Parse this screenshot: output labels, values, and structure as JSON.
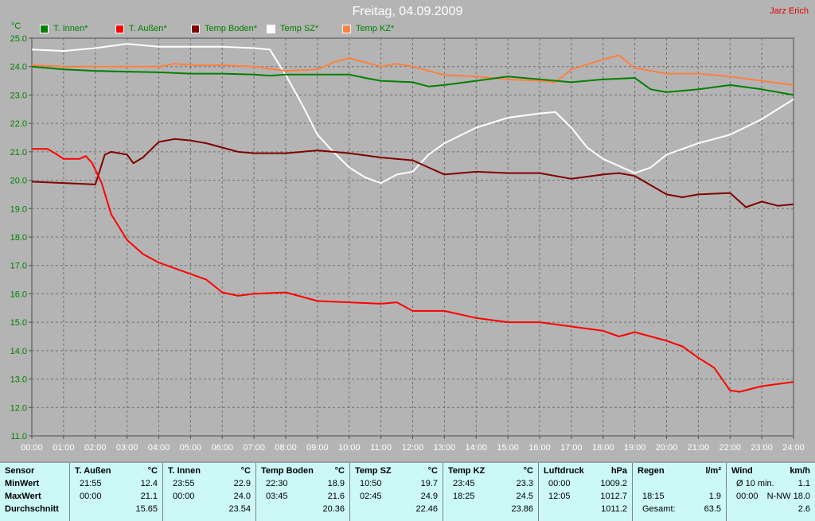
{
  "header": {
    "title": "Freitag, 04.09.2009",
    "author": "Jarz Erich"
  },
  "chart_data": {
    "type": "line",
    "title": "Freitag, 04.09.2009",
    "ylabel": "°C",
    "ylim": [
      11.0,
      25.0
    ],
    "xlim": [
      0,
      24
    ],
    "grid": true,
    "legend_position": "top",
    "y_ticks": [
      "11.0",
      "12.0",
      "13.0",
      "14.0",
      "15.0",
      "16.0",
      "17.0",
      "18.0",
      "19.0",
      "20.0",
      "21.0",
      "22.0",
      "23.0",
      "24.0",
      "25.0"
    ],
    "x_ticks": [
      "00:00",
      "01:00",
      "02:00",
      "03:00",
      "04:00",
      "05:00",
      "06:00",
      "07:00",
      "08:00",
      "09:00",
      "10:00",
      "11:00",
      "12:00",
      "13:00",
      "14:00",
      "15:00",
      "16:00",
      "17:00",
      "18:00",
      "19:00",
      "20:00",
      "21:00",
      "22:00",
      "23:00",
      "24:00"
    ],
    "series": [
      {
        "name": "T. Innen*",
        "color": "#008000",
        "x": [
          0,
          1,
          2,
          3,
          4,
          5,
          6,
          7,
          7.5,
          8,
          9,
          10,
          10.5,
          11,
          12,
          12.5,
          13,
          14,
          15,
          16,
          17,
          18,
          19,
          19.5,
          20,
          21,
          22,
          23,
          24
        ],
        "y": [
          24.0,
          23.9,
          23.85,
          23.82,
          23.8,
          23.75,
          23.75,
          23.72,
          23.68,
          23.72,
          23.72,
          23.72,
          23.6,
          23.5,
          23.45,
          23.3,
          23.35,
          23.5,
          23.65,
          23.55,
          23.45,
          23.55,
          23.6,
          23.2,
          23.1,
          23.2,
          23.35,
          23.2,
          23.0
        ]
      },
      {
        "name": "T. Außen*",
        "color": "#ff0000",
        "x": [
          0,
          0.5,
          0.8,
          1,
          1.5,
          1.7,
          1.9,
          2.2,
          2.5,
          3,
          3.5,
          4,
          5,
          5.5,
          6,
          6.5,
          7,
          8,
          9,
          10,
          11,
          11.5,
          12,
          13,
          14,
          15,
          16,
          17,
          18,
          18.5,
          19,
          20,
          20.5,
          21,
          21.5,
          22,
          22.3,
          23,
          24
        ],
        "y": [
          21.1,
          21.1,
          20.9,
          20.75,
          20.75,
          20.85,
          20.6,
          19.9,
          18.8,
          17.9,
          17.4,
          17.1,
          16.7,
          16.5,
          16.05,
          15.93,
          16.0,
          16.05,
          15.75,
          15.7,
          15.65,
          15.7,
          15.4,
          15.4,
          15.15,
          15.0,
          15.0,
          14.85,
          14.7,
          14.5,
          14.65,
          14.35,
          14.15,
          13.75,
          13.4,
          12.6,
          12.55,
          12.75,
          12.9
        ]
      },
      {
        "name": "Temp Boden*",
        "color": "#800000",
        "x": [
          0,
          1,
          2,
          2.3,
          2.5,
          3,
          3.2,
          3.5,
          4,
          4.5,
          5,
          5.5,
          6,
          6.5,
          7,
          8,
          9,
          10,
          11,
          12,
          12.5,
          13,
          14,
          15,
          16,
          17,
          18,
          18.5,
          19,
          20,
          20.5,
          21,
          22,
          22.5,
          23,
          23.5,
          24
        ],
        "y": [
          19.95,
          19.9,
          19.85,
          20.9,
          21.0,
          20.9,
          20.6,
          20.8,
          21.35,
          21.45,
          21.4,
          21.3,
          21.15,
          21.0,
          20.95,
          20.95,
          21.05,
          20.95,
          20.8,
          20.7,
          20.45,
          20.2,
          20.3,
          20.25,
          20.25,
          20.05,
          20.2,
          20.25,
          20.15,
          19.5,
          19.4,
          19.5,
          19.55,
          19.05,
          19.25,
          19.1,
          19.15
        ]
      },
      {
        "name": "Temp SZ*",
        "color": "#ffffff",
        "x": [
          0,
          1,
          2,
          3,
          4,
          5,
          6,
          7,
          7.5,
          8,
          8.5,
          9,
          9.5,
          10,
          10.5,
          11,
          11.5,
          12,
          12.5,
          13,
          14,
          15,
          16,
          16.5,
          17,
          17.5,
          18,
          19,
          19.5,
          20,
          21,
          22,
          23,
          24
        ],
        "y": [
          24.6,
          24.55,
          24.65,
          24.8,
          24.7,
          24.7,
          24.7,
          24.65,
          24.6,
          23.7,
          22.7,
          21.6,
          21.0,
          20.45,
          20.1,
          19.9,
          20.2,
          20.3,
          20.9,
          21.3,
          21.85,
          22.2,
          22.35,
          22.4,
          21.85,
          21.15,
          20.75,
          20.25,
          20.45,
          20.9,
          21.3,
          21.6,
          22.15,
          22.85
        ]
      },
      {
        "name": "Temp KZ*",
        "color": "#ff8040",
        "x": [
          0,
          1,
          2,
          3,
          4,
          4.5,
          5,
          6,
          7,
          8,
          9,
          9.5,
          10,
          11,
          11.5,
          12,
          13,
          14,
          15,
          16,
          16.5,
          17,
          18,
          18.5,
          19,
          20,
          21,
          22,
          23,
          24
        ],
        "y": [
          24.05,
          24.0,
          24.0,
          24.0,
          24.0,
          24.1,
          24.05,
          24.05,
          24.0,
          23.85,
          23.9,
          24.15,
          24.3,
          24.0,
          24.1,
          24.0,
          23.7,
          23.65,
          23.55,
          23.5,
          23.45,
          23.9,
          24.25,
          24.4,
          23.95,
          23.75,
          23.75,
          23.65,
          23.5,
          23.35
        ]
      }
    ]
  },
  "table": {
    "sensor_col": [
      "Sensor",
      "MinWert",
      "MaxWert",
      "Durchschnitt"
    ],
    "columns": [
      {
        "name": "T. Außen",
        "unit": "°C",
        "min": [
          "21:55",
          "12.4"
        ],
        "max": [
          "00:00",
          "21.1"
        ],
        "avg": [
          "",
          "15.65"
        ]
      },
      {
        "name": "T. Innen",
        "unit": "°C",
        "min": [
          "23:55",
          "22.9"
        ],
        "max": [
          "00:00",
          "24.0"
        ],
        "avg": [
          "",
          "23.54"
        ]
      },
      {
        "name": "Temp Boden",
        "unit": "°C",
        "min": [
          "22:30",
          "18.9"
        ],
        "max": [
          "03:45",
          "21.6"
        ],
        "avg": [
          "",
          "20.36"
        ]
      },
      {
        "name": "Temp SZ",
        "unit": "°C",
        "min": [
          "10:50",
          "19.7"
        ],
        "max": [
          "02:45",
          "24.9"
        ],
        "avg": [
          "",
          "22.46"
        ]
      },
      {
        "name": "Temp KZ",
        "unit": "°C",
        "min": [
          "23:45",
          "23.3"
        ],
        "max": [
          "18:25",
          "24.5"
        ],
        "avg": [
          "",
          "23.86"
        ]
      },
      {
        "name": "Luftdruck",
        "unit": "hPa",
        "min": [
          "00:00",
          "1009.2"
        ],
        "max": [
          "12:05",
          "1012.7"
        ],
        "avg": [
          "",
          "1011.2"
        ]
      },
      {
        "name": "Regen",
        "unit": "l/m²",
        "min": [
          "",
          ""
        ],
        "max": [
          "18:15",
          "1.9"
        ],
        "avg": [
          "Gesamt:",
          "63.5"
        ]
      },
      {
        "name": "Wind",
        "unit": "km/h",
        "min": [
          "Ø 10 min.",
          "1.1"
        ],
        "max": [
          "00:00",
          "N-NW 18.0"
        ],
        "avg": [
          "",
          "2.6"
        ]
      }
    ]
  }
}
